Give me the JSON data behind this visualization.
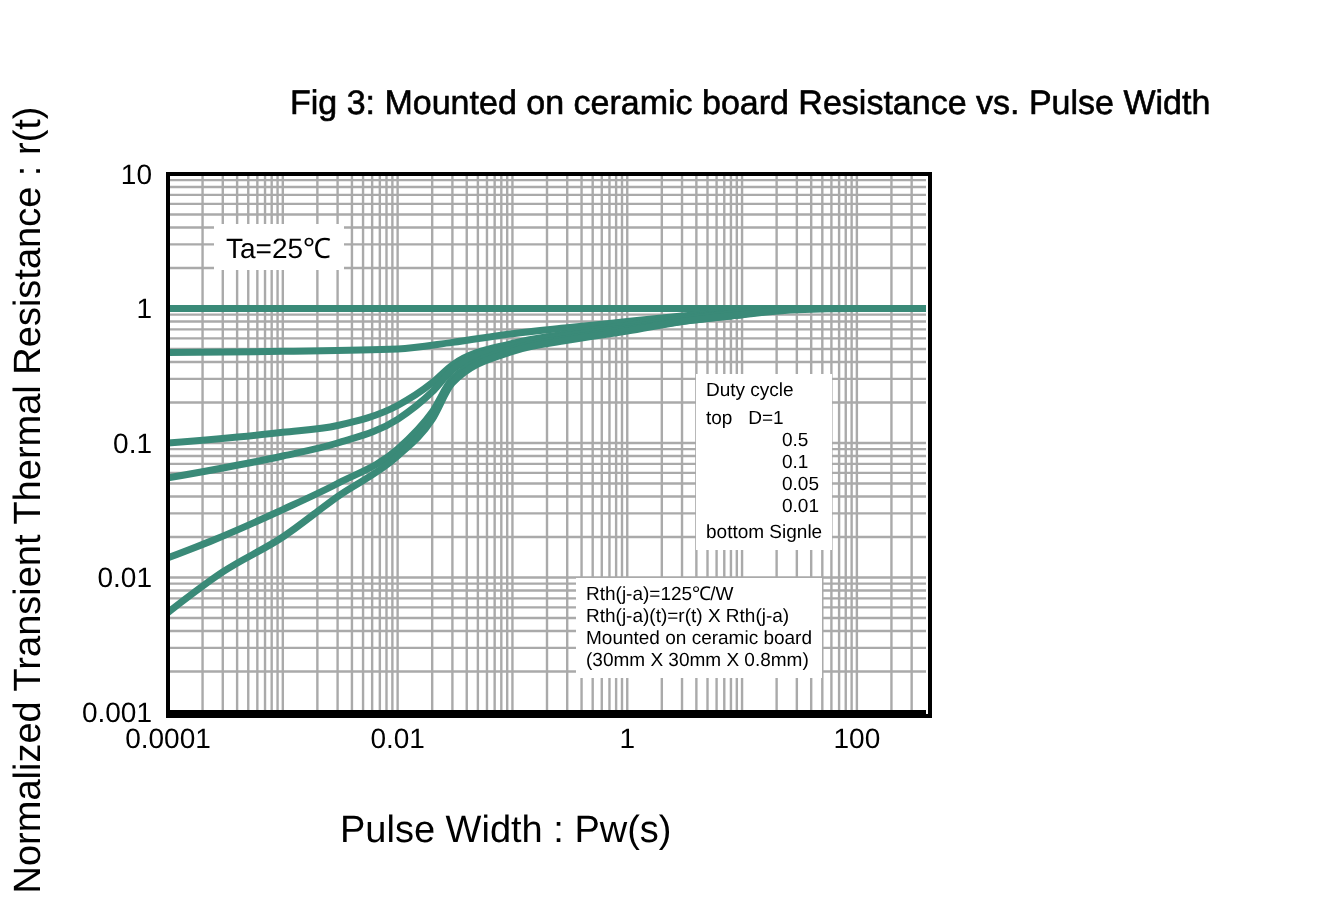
{
  "chart_data": {
    "type": "line",
    "title": "Fig 3: Mounted on ceramic board Resistance vs. Pulse Width",
    "xlabel": "Pulse Width : Pw(s)",
    "ylabel": "Normalized Transient Thermal Resistance : r(t)",
    "log": "xy",
    "grid": true,
    "marker": "none",
    "line_style": "solid",
    "xlim": [
      0.0001,
      400
    ],
    "ylim": [
      0.001,
      10
    ],
    "xticks": [
      0.0001,
      {
        "value": 0.0002,
        "label": null
      },
      {
        "value": 0.0003,
        "label": null
      },
      {
        "value": 0.0004,
        "label": null
      },
      {
        "value": 0.0005,
        "label": null
      },
      {
        "value": 0.0006,
        "label": null
      },
      {
        "value": 0.0007,
        "label": null
      },
      {
        "value": 0.0008,
        "label": null
      },
      {
        "value": 0.0009,
        "label": null
      },
      {
        "value": 0.001,
        "label": null
      },
      {
        "value": 0.002,
        "label": null
      },
      {
        "value": 0.003,
        "label": null
      },
      {
        "value": 0.004,
        "label": null
      },
      {
        "value": 0.005,
        "label": null
      },
      {
        "value": 0.006,
        "label": null
      },
      {
        "value": 0.007,
        "label": null
      },
      {
        "value": 0.008,
        "label": null
      },
      {
        "value": 0.009,
        "label": null
      },
      0.01,
      {
        "value": 0.02,
        "label": null
      },
      {
        "value": 0.03,
        "label": null
      },
      {
        "value": 0.04,
        "label": null
      },
      {
        "value": 0.05,
        "label": null
      },
      {
        "value": 0.06,
        "label": null
      },
      {
        "value": 0.07,
        "label": null
      },
      {
        "value": 0.08,
        "label": null
      },
      {
        "value": 0.09,
        "label": null
      },
      {
        "value": 0.1,
        "label": null
      },
      {
        "value": 0.2,
        "label": null
      },
      {
        "value": 0.3,
        "label": null
      },
      {
        "value": 0.4,
        "label": null
      },
      {
        "value": 0.5,
        "label": null
      },
      {
        "value": 0.6,
        "label": null
      },
      {
        "value": 0.7,
        "label": null
      },
      {
        "value": 0.8,
        "label": null
      },
      {
        "value": 0.9,
        "label": null
      },
      1,
      {
        "value": 2,
        "label": null
      },
      {
        "value": 3,
        "label": null
      },
      {
        "value": 4,
        "label": null
      },
      {
        "value": 5,
        "label": null
      },
      {
        "value": 6,
        "label": null
      },
      {
        "value": 7,
        "label": null
      },
      {
        "value": 8,
        "label": null
      },
      {
        "value": 9,
        "label": null
      },
      {
        "value": 10,
        "label": null
      },
      {
        "value": 20,
        "label": null
      },
      {
        "value": 30,
        "label": null
      },
      {
        "value": 40,
        "label": null
      },
      {
        "value": 50,
        "label": null
      },
      {
        "value": 60,
        "label": null
      },
      {
        "value": 70,
        "label": null
      },
      {
        "value": 80,
        "label": null
      },
      {
        "value": 90,
        "label": null
      },
      100,
      {
        "value": 200,
        "label": null
      },
      {
        "value": 300,
        "label": null
      }
    ],
    "yticks": [
      0.001,
      {
        "value": 0.002,
        "label": null
      },
      {
        "value": 0.003,
        "label": null
      },
      {
        "value": 0.004,
        "label": null
      },
      {
        "value": 0.005,
        "label": null
      },
      {
        "value": 0.006,
        "label": null
      },
      {
        "value": 0.007,
        "label": null
      },
      {
        "value": 0.008,
        "label": null
      },
      {
        "value": 0.009,
        "label": null
      },
      0.01,
      {
        "value": 0.02,
        "label": null
      },
      {
        "value": 0.03,
        "label": null
      },
      {
        "value": 0.04,
        "label": null
      },
      {
        "value": 0.05,
        "label": null
      },
      {
        "value": 0.06,
        "label": null
      },
      {
        "value": 0.07,
        "label": null
      },
      {
        "value": 0.08,
        "label": null
      },
      {
        "value": 0.09,
        "label": null
      },
      0.1,
      {
        "value": 0.2,
        "label": null
      },
      {
        "value": 0.3,
        "label": null
      },
      {
        "value": 0.4,
        "label": null
      },
      {
        "value": 0.5,
        "label": null
      },
      {
        "value": 0.6,
        "label": null
      },
      {
        "value": 0.7,
        "label": null
      },
      {
        "value": 0.8,
        "label": null
      },
      {
        "value": 0.9,
        "label": null
      },
      1,
      {
        "value": 2,
        "label": null
      },
      {
        "value": 3,
        "label": null
      },
      {
        "value": 4,
        "label": null
      },
      {
        "value": 5,
        "label": null
      },
      {
        "value": 6,
        "label": null
      },
      {
        "value": 7,
        "label": null
      },
      {
        "value": 8,
        "label": null
      },
      {
        "value": 9,
        "label": null
      },
      10
    ],
    "series": [
      {
        "color": "#3a8a78",
        "x": [
          0.0001,
          400
        ],
        "values": [
          1,
          1
        ]
      },
      {
        "color": "#3a8a78",
        "x": [
          0.0001,
          0.001,
          0.01,
          0.03,
          0.1,
          0.3,
          1,
          3,
          10,
          30,
          400
        ],
        "values": [
          0.47,
          0.48,
          0.5,
          0.56,
          0.65,
          0.72,
          0.8,
          0.88,
          0.96,
          1,
          1
        ]
      },
      {
        "color": "#3a8a78",
        "x": [
          0.0001,
          0.001,
          0.003,
          0.01,
          0.02,
          0.03,
          0.1,
          0.3,
          1,
          3,
          10,
          30,
          400
        ],
        "values": [
          0.1,
          0.12,
          0.135,
          0.19,
          0.28,
          0.38,
          0.55,
          0.65,
          0.75,
          0.85,
          0.94,
          1,
          1
        ]
      },
      {
        "color": "#3a8a78",
        "x": [
          0.0001,
          0.001,
          0.003,
          0.01,
          0.02,
          0.03,
          0.1,
          0.3,
          1,
          3,
          10,
          30,
          400
        ],
        "values": [
          0.055,
          0.08,
          0.1,
          0.15,
          0.24,
          0.35,
          0.53,
          0.63,
          0.72,
          0.83,
          0.93,
          1,
          1
        ]
      },
      {
        "color": "#3a8a78",
        "x": [
          0.0001,
          0.00025,
          0.001,
          0.003,
          0.01,
          0.02,
          0.03,
          0.1,
          0.3,
          1,
          3,
          10,
          30,
          400
        ],
        "values": [
          0.014,
          0.019,
          0.032,
          0.05,
          0.09,
          0.17,
          0.3,
          0.5,
          0.6,
          0.7,
          0.8,
          0.9,
          1,
          1
        ]
      },
      {
        "color": "#3a8a78",
        "x": [
          0.0001,
          0.0003,
          0.001,
          0.003,
          0.01,
          0.02,
          0.03,
          0.1,
          0.3,
          1,
          3,
          10,
          30,
          100,
          400
        ],
        "values": [
          0.0055,
          0.011,
          0.02,
          0.04,
          0.08,
          0.15,
          0.28,
          0.48,
          0.58,
          0.68,
          0.8,
          0.9,
          0.98,
          1,
          1
        ]
      }
    ],
    "annotations": [
      "Ta=25℃",
      "Duty cycle",
      "top   D=1",
      "0.5",
      "0.1",
      "0.05",
      "0.01",
      "bottom Signle",
      "Rth(j-a)=125℃/W",
      "Rth(j-a)(t)=r(t) X Rth(j-a)",
      "Mounted on ceramic board",
      "(30mm X 30mm X 0.8mm)"
    ]
  }
}
